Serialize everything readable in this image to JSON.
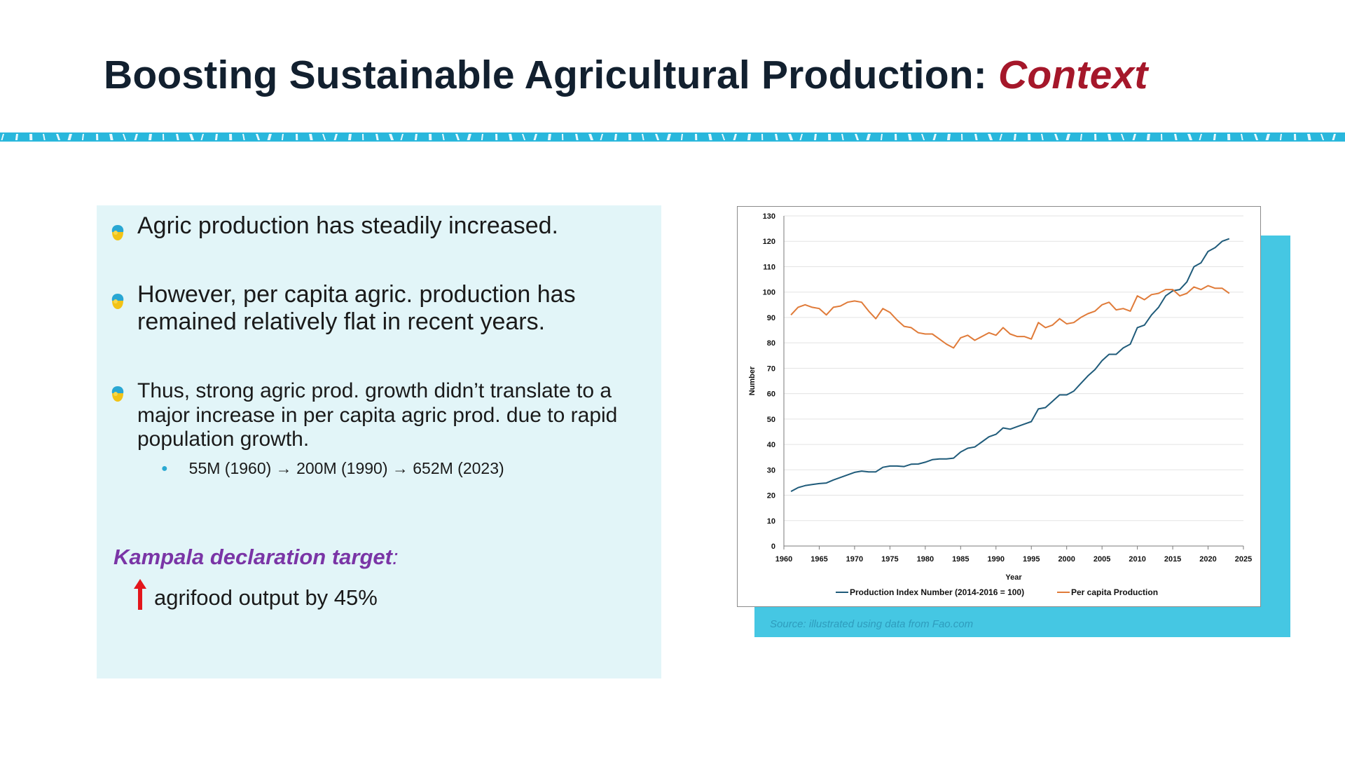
{
  "slide": {
    "title_main": "Boosting Sustainable Agricultural Production: ",
    "title_accent": "Context"
  },
  "bullets": [
    {
      "text": "Agric production has steadily increased."
    },
    {
      "text": "However, per capita agric. production has remained relatively flat in recent years."
    },
    {
      "text": "Thus, strong agric prod. growth didn’t translate to a major increase in per capita agric prod. due to rapid population growth."
    }
  ],
  "sub_bullet": "55M (1960) → 200M (1990) → 652M (2023)",
  "kampala": {
    "heading": "Kampala declaration target",
    "colon": ":",
    "target_text": "agrifood output by 45%"
  },
  "source_note": "Source: illustrated using data from Fao.com",
  "colors": {
    "title_accent": "#a5172a",
    "banner": "#29b7dc",
    "panel": "#e2f5f8",
    "kampala": "#7a35a6",
    "series_index": "#1f5b7a",
    "series_capita": "#e07b39",
    "chart_backdrop": "#45c7e3",
    "arrow": "#e3161c"
  },
  "icons": [
    "bullet-drop-icon",
    "up-arrow-icon",
    "legend-line-icon"
  ],
  "chart_data": {
    "type": "line",
    "title": "",
    "xlabel": "Year",
    "ylabel": "Number",
    "xlim": [
      1960,
      2025
    ],
    "ylim": [
      0,
      130
    ],
    "xticks": [
      1960,
      1965,
      1970,
      1975,
      1980,
      1985,
      1990,
      1995,
      2000,
      2005,
      2010,
      2015,
      2020,
      2025
    ],
    "yticks": [
      0,
      10,
      20,
      30,
      40,
      50,
      60,
      70,
      80,
      90,
      100,
      110,
      120,
      130
    ],
    "grid": true,
    "legend_position": "bottom",
    "x": [
      1961,
      1962,
      1963,
      1964,
      1965,
      1966,
      1967,
      1968,
      1969,
      1970,
      1971,
      1972,
      1973,
      1974,
      1975,
      1976,
      1977,
      1978,
      1979,
      1980,
      1981,
      1982,
      1983,
      1984,
      1985,
      1986,
      1987,
      1988,
      1989,
      1990,
      1991,
      1992,
      1993,
      1994,
      1995,
      1996,
      1997,
      1998,
      1999,
      2000,
      2001,
      2002,
      2003,
      2004,
      2005,
      2006,
      2007,
      2008,
      2009,
      2010,
      2011,
      2012,
      2013,
      2014,
      2015,
      2016,
      2017,
      2018,
      2019,
      2020,
      2021,
      2022,
      2023
    ],
    "series": [
      {
        "name": "Production Index Number (2014-2016 = 100)",
        "values": [
          21.5,
          23,
          23.8,
          24.2,
          24.6,
          24.8,
          26,
          27,
          28,
          29,
          29.5,
          29.2,
          29.2,
          31,
          31.5,
          31.5,
          31.3,
          32.2,
          32.3,
          33,
          34,
          34.3,
          34.3,
          34.6,
          37,
          38.5,
          39,
          41,
          43,
          44,
          46.5,
          46,
          47,
          48,
          49,
          54,
          54.5,
          57,
          59.5,
          59.5,
          61,
          64,
          67,
          69.5,
          73,
          75.5,
          75.5,
          78,
          79.5,
          86,
          87,
          91,
          94,
          98.5,
          100.5,
          101,
          104,
          110,
          111.5,
          116,
          117.5,
          120,
          121
        ]
      },
      {
        "name": "Per capita Production",
        "values": [
          91,
          94,
          95,
          94,
          93.5,
          91,
          94,
          94.5,
          96,
          96.5,
          96,
          92.5,
          89.5,
          93.5,
          92,
          89,
          86.5,
          86,
          84,
          83.5,
          83.5,
          81.5,
          79.5,
          78,
          82,
          83,
          81,
          82.5,
          84,
          83,
          86,
          83.5,
          82.5,
          82.5,
          81.5,
          88,
          86,
          87,
          89.5,
          87.5,
          88,
          90,
          91.5,
          92.5,
          95,
          96,
          93,
          93.5,
          92.5,
          98.5,
          97,
          99,
          99.5,
          101,
          101,
          98.5,
          99.5,
          102,
          101,
          102.5,
          101.5,
          101.5,
          99.5
        ]
      }
    ]
  }
}
